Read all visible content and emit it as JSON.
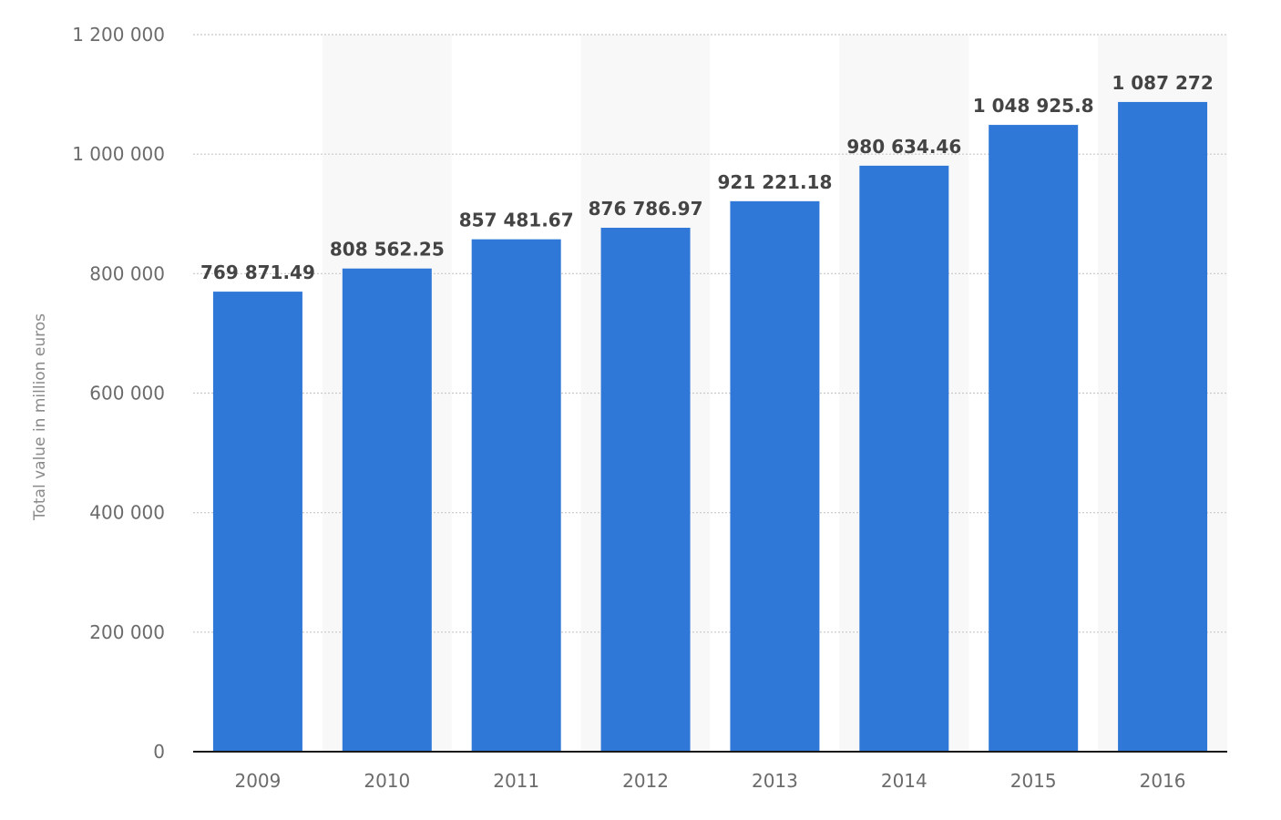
{
  "chart_data": {
    "type": "bar",
    "title": "",
    "xlabel": "",
    "ylabel": "Total value in million euros",
    "categories": [
      "2009",
      "2010",
      "2011",
      "2012",
      "2013",
      "2014",
      "2015",
      "2016"
    ],
    "values": [
      769871.49,
      808562.25,
      857481.67,
      876786.97,
      921221.18,
      980634.46,
      1048925.8,
      1087272
    ],
    "data_labels": [
      "769 871.49",
      "808 562.25",
      "857 481.67",
      "876 786.97",
      "921 221.18",
      "980 634.46",
      "1 048 925.8",
      "1 087 272"
    ],
    "ylim": [
      0,
      1200000
    ],
    "yticks": [
      0,
      200000,
      400000,
      600000,
      800000,
      1000000,
      1200000
    ],
    "ytick_labels": [
      "0",
      "200 000",
      "400 000",
      "600 000",
      "800 000",
      "1 000 000",
      "1 200 000"
    ],
    "grid": true,
    "legend": "none",
    "colors": {
      "bar": "#2f78d8",
      "band": "#f8f8f8",
      "gridline": "#c8c8c8",
      "axis": "#1a1a1a"
    }
  }
}
